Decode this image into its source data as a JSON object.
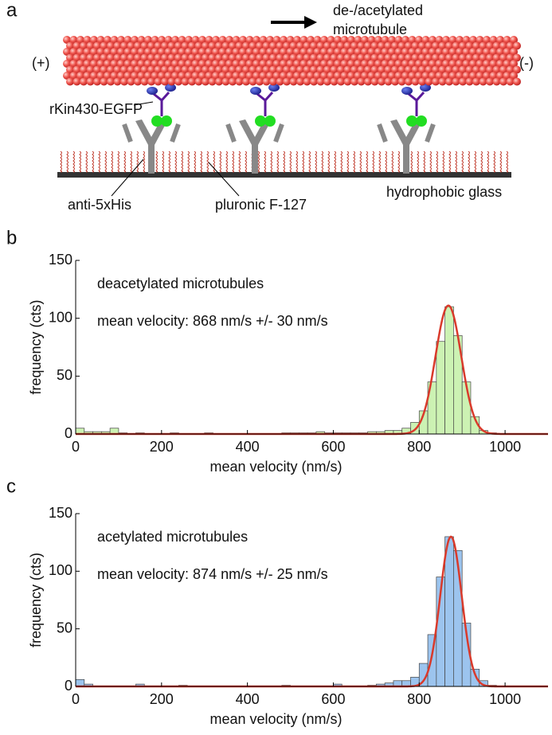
{
  "panel_labels": [
    "a",
    "b",
    "c"
  ],
  "diagram": {
    "microtubule_label": [
      "de-/acetylated",
      "microtubule"
    ],
    "plus_end": "(+)",
    "minus_end": "(-)",
    "motor": "rKin430-EGFP",
    "antibody": "anti-5xHis",
    "surface_block": "pluronic F-127",
    "surface": "hydrophobic glass"
  },
  "chart_data": [
    {
      "type": "histogram",
      "label_text": "deacetylated microtubules",
      "label_color": "#3aa620",
      "annotation": "mean velocity: 868 nm/s +/- 30 nm/s",
      "x_label": "mean velocity (nm/s)",
      "y_label": "frequency (cts)",
      "bins": [
        0,
        20,
        40,
        60,
        80,
        100,
        120,
        140,
        160,
        180,
        200,
        220,
        240,
        260,
        280,
        300,
        320,
        340,
        360,
        380,
        400,
        420,
        440,
        460,
        480,
        500,
        520,
        540,
        560,
        580,
        600,
        620,
        640,
        660,
        680,
        700,
        720,
        740,
        760,
        780,
        800,
        820,
        840,
        860,
        880,
        900,
        920,
        940,
        960,
        980,
        1000,
        1020,
        1040,
        1060,
        1080,
        1100
      ],
      "counts": [
        5,
        2,
        2,
        2,
        5,
        1,
        0,
        1,
        0,
        0,
        0,
        1,
        0,
        0,
        0,
        1,
        0,
        0,
        0,
        0,
        0,
        0,
        0,
        0,
        1,
        1,
        1,
        1,
        2,
        1,
        1,
        1,
        1,
        1,
        2,
        2,
        3,
        3,
        5,
        10,
        20,
        45,
        80,
        110,
        85,
        45,
        15,
        3,
        1,
        0,
        0,
        0,
        0,
        0,
        0
      ],
      "color": "#ccf2b3",
      "xlim": [
        0,
        1100
      ],
      "ylim": [
        0,
        150
      ],
      "xticks": [
        0,
        200,
        400,
        600,
        800,
        1000
      ],
      "yticks": [
        0,
        50,
        100,
        150
      ],
      "fit": {
        "type": "gaussian",
        "mean": 868,
        "sd": 30,
        "amplitude": 111,
        "color": "#d93a2b"
      }
    },
    {
      "type": "histogram",
      "label_text": "acetylated microtubules",
      "label_color": "#2a72c4",
      "annotation": "mean velocity: 874 nm/s +/- 25 nm/s",
      "x_label": "mean velocity (nm/s)",
      "y_label": "frequency (cts)",
      "bins": [
        0,
        20,
        40,
        60,
        80,
        100,
        120,
        140,
        160,
        180,
        200,
        220,
        240,
        260,
        280,
        300,
        320,
        340,
        360,
        380,
        400,
        420,
        440,
        460,
        480,
        500,
        520,
        540,
        560,
        580,
        600,
        620,
        640,
        660,
        680,
        700,
        720,
        740,
        760,
        780,
        800,
        820,
        840,
        860,
        880,
        900,
        920,
        940,
        960,
        980,
        1000,
        1020,
        1040,
        1060,
        1080,
        1100
      ],
      "counts": [
        6,
        2,
        0,
        0,
        0,
        0,
        0,
        2,
        0,
        0,
        0,
        0,
        1,
        0,
        0,
        0,
        0,
        0,
        0,
        0,
        0,
        0,
        0,
        0,
        1,
        0,
        0,
        0,
        0,
        0,
        2,
        0,
        0,
        0,
        1,
        2,
        3,
        5,
        5,
        8,
        20,
        45,
        95,
        130,
        118,
        55,
        15,
        5,
        1,
        0,
        0,
        0,
        0,
        0,
        0
      ],
      "color": "#9cc4ee",
      "xlim": [
        0,
        1100
      ],
      "ylim": [
        0,
        150
      ],
      "xticks": [
        0,
        200,
        400,
        600,
        800,
        1000
      ],
      "yticks": [
        0,
        50,
        100,
        150
      ],
      "fit": {
        "type": "gaussian",
        "mean": 874,
        "sd": 25,
        "amplitude": 130,
        "color": "#d93a2b"
      }
    }
  ]
}
